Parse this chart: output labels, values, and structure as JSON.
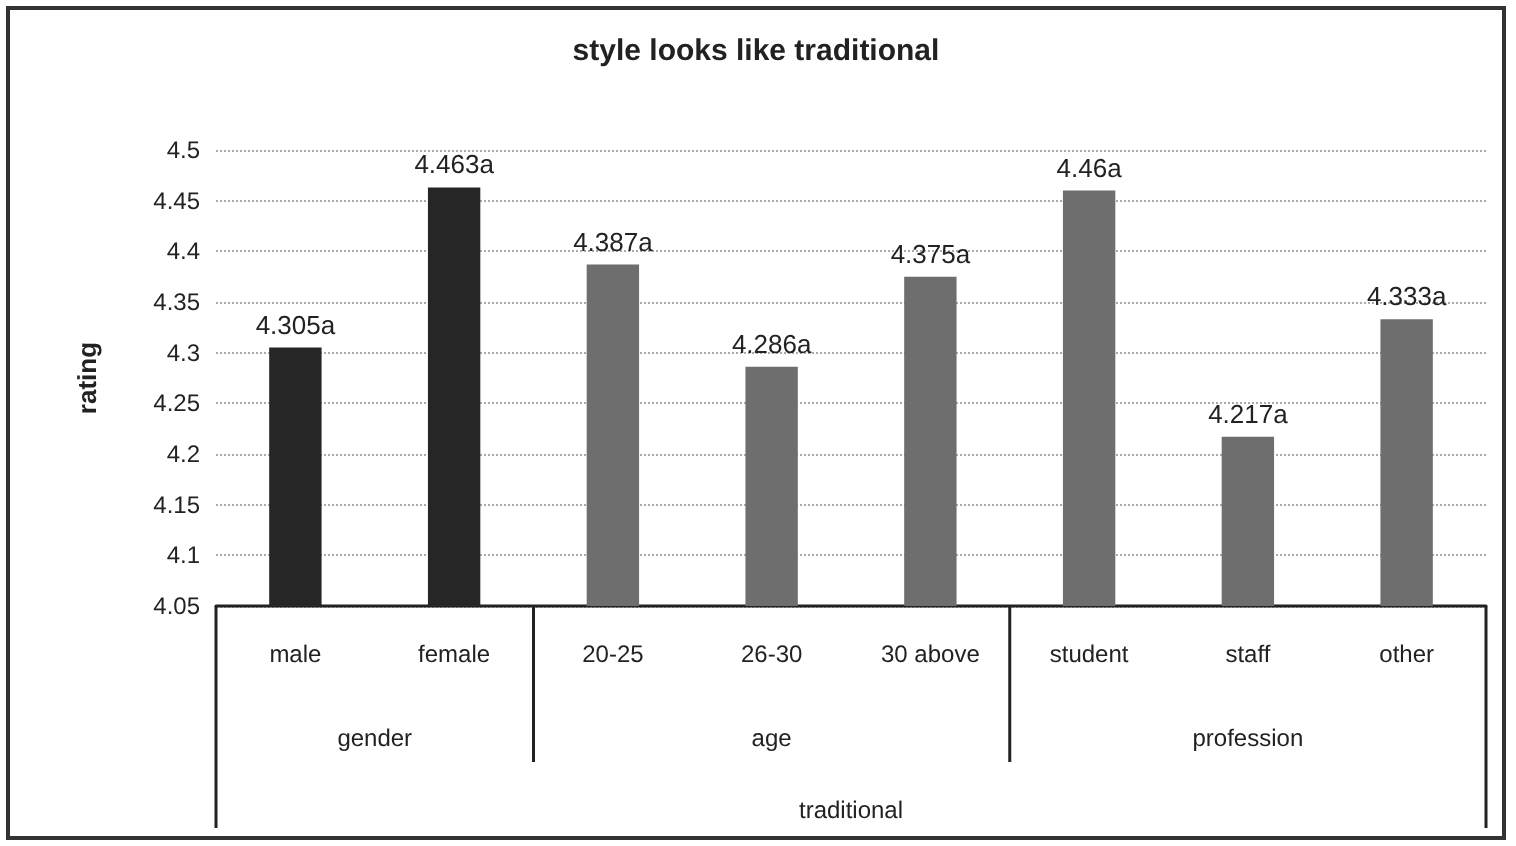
{
  "chart_data": {
    "type": "bar",
    "title": "style looks like traditional",
    "ylabel": "rating",
    "categories": [
      "male",
      "female",
      "20-25",
      "26-30",
      "30 above",
      "student",
      "staff",
      "other"
    ],
    "series": [
      {
        "color": "#262626",
        "values": [
          4.305,
          4.463,
          null,
          null,
          null,
          null,
          null,
          null
        ],
        "value_labels": [
          "4.305a",
          "4.463a",
          null,
          null,
          null,
          null,
          null,
          null
        ]
      },
      {
        "color": "#6e6e6e",
        "values": [
          null,
          null,
          4.387,
          4.286,
          4.375,
          null,
          null,
          null
        ],
        "value_labels": [
          null,
          null,
          "4.387a",
          "4.286a",
          "4.375a",
          null,
          null,
          null
        ]
      },
      {
        "color": "#6e6e6e",
        "values": [
          null,
          null,
          null,
          null,
          null,
          4.46,
          4.217,
          4.333
        ],
        "value_labels": [
          null,
          null,
          null,
          null,
          null,
          "4.46a",
          "4.217a",
          "4.333a"
        ]
      }
    ],
    "annotations": [
      "gender",
      "age",
      "profession",
      "traditional"
    ],
    "ylim": [
      4.05,
      4.5
    ],
    "yticks": [
      4.05,
      4.1,
      4.15,
      4.2,
      4.25,
      4.3,
      4.35,
      4.4,
      4.45,
      4.5
    ],
    "grid": "y"
  }
}
